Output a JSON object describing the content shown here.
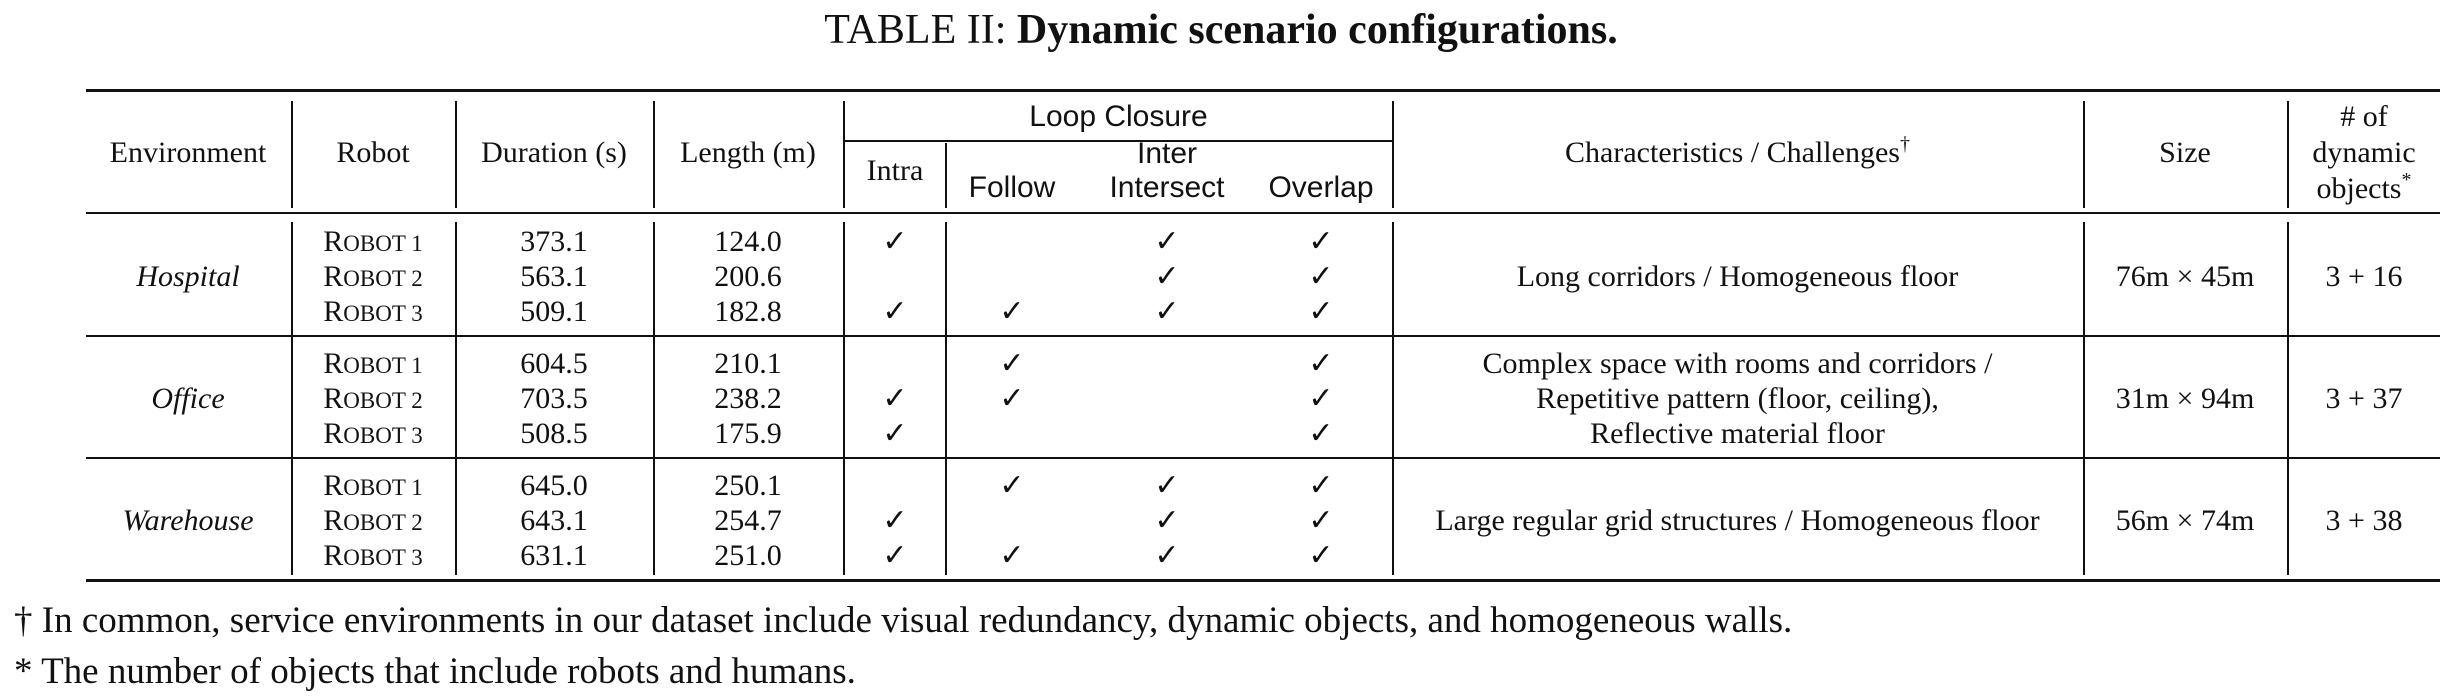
{
  "caption": {
    "prefix": "TABLE II: ",
    "title": "Dynamic scenario configurations."
  },
  "headers": {
    "environment": "Environment",
    "robot": "Robot",
    "duration": "Duration (s)",
    "length": "Length (m)",
    "loop_closure": "Loop Closure",
    "intra": "Intra",
    "inter": "Inter",
    "follow": "Follow",
    "intersect": "Intersect",
    "overlap": "Overlap",
    "characteristics": "Characteristics / Challenges",
    "characteristics_mark": "†",
    "size": "Size",
    "objects_line1": "# of",
    "objects_line2": "dynamic",
    "objects_line3": "objects",
    "objects_mark": "*"
  },
  "check_symbol": "✓",
  "groups": [
    {
      "environment": "Hospital",
      "characteristics": [
        "Long corridors / Homogeneous floor"
      ],
      "size": "76m × 45m",
      "objects": "3 + 16",
      "rows": [
        {
          "robot_cap": "R",
          "robot_rest": "OBOT 1",
          "duration": "373.1",
          "length": "124.0",
          "intra": true,
          "follow": false,
          "intersect": true,
          "overlap": true
        },
        {
          "robot_cap": "R",
          "robot_rest": "OBOT 2",
          "duration": "563.1",
          "length": "200.6",
          "intra": false,
          "follow": false,
          "intersect": true,
          "overlap": true
        },
        {
          "robot_cap": "R",
          "robot_rest": "OBOT 3",
          "duration": "509.1",
          "length": "182.8",
          "intra": true,
          "follow": true,
          "intersect": true,
          "overlap": true
        }
      ]
    },
    {
      "environment": "Office",
      "characteristics": [
        "Complex space with rooms and corridors /",
        "Repetitive pattern (floor, ceiling),",
        "Reflective material floor"
      ],
      "size": "31m × 94m",
      "objects": "3 + 37",
      "rows": [
        {
          "robot_cap": "R",
          "robot_rest": "OBOT 1",
          "duration": "604.5",
          "length": "210.1",
          "intra": false,
          "follow": true,
          "intersect": false,
          "overlap": true
        },
        {
          "robot_cap": "R",
          "robot_rest": "OBOT 2",
          "duration": "703.5",
          "length": "238.2",
          "intra": true,
          "follow": true,
          "intersect": false,
          "overlap": true
        },
        {
          "robot_cap": "R",
          "robot_rest": "OBOT 3",
          "duration": "508.5",
          "length": "175.9",
          "intra": true,
          "follow": false,
          "intersect": false,
          "overlap": true
        }
      ]
    },
    {
      "environment": "Warehouse",
      "characteristics": [
        "Large regular grid structures / Homogeneous floor"
      ],
      "size": "56m × 74m",
      "objects": "3 + 38",
      "rows": [
        {
          "robot_cap": "R",
          "robot_rest": "OBOT 1",
          "duration": "645.0",
          "length": "250.1",
          "intra": false,
          "follow": true,
          "intersect": true,
          "overlap": true
        },
        {
          "robot_cap": "R",
          "robot_rest": "OBOT 2",
          "duration": "643.1",
          "length": "254.7",
          "intra": true,
          "follow": false,
          "intersect": true,
          "overlap": true
        },
        {
          "robot_cap": "R",
          "robot_rest": "OBOT 3",
          "duration": "631.1",
          "length": "251.0",
          "intra": true,
          "follow": true,
          "intersect": true,
          "overlap": true
        }
      ]
    }
  ],
  "footnotes": [
    {
      "mark": "†",
      "text": " In common, service environments in our dataset include visual redundancy, dynamic objects, and homogeneous walls."
    },
    {
      "mark": "*",
      "text": " The number of objects that include robots and humans."
    }
  ]
}
